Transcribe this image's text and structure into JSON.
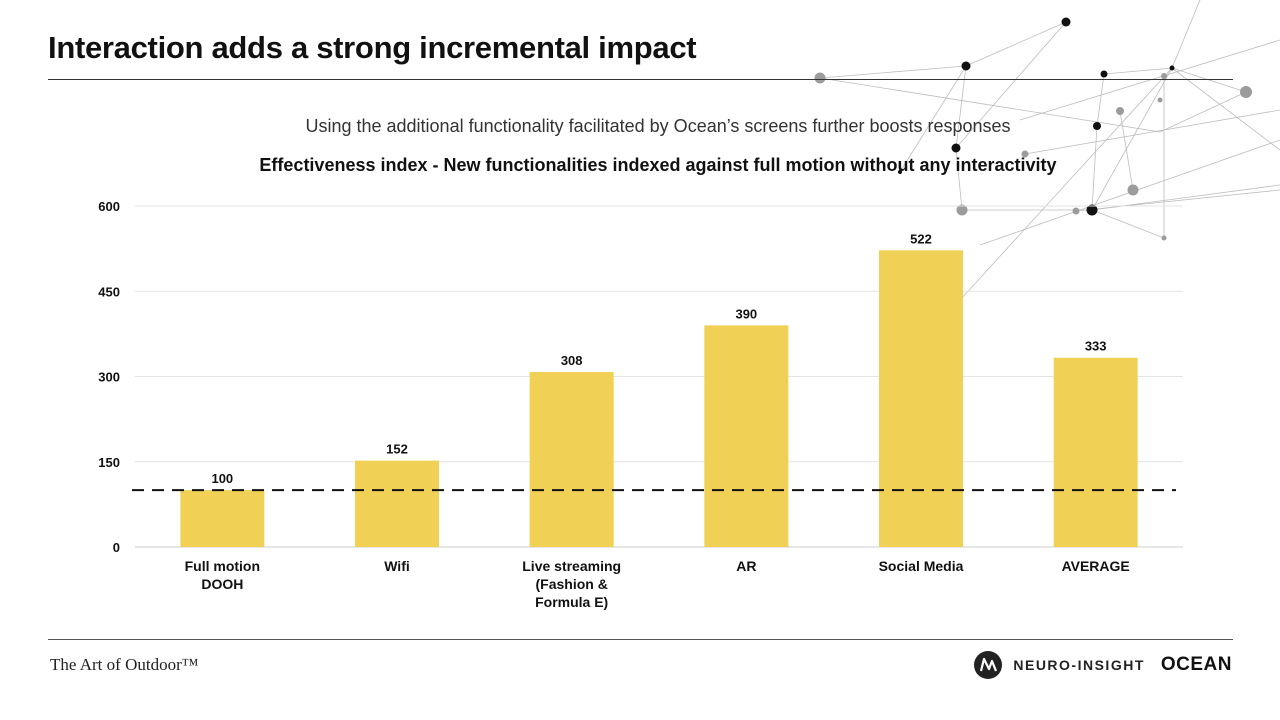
{
  "title": "Interaction adds a strong incremental impact",
  "subtitle": "Using the additional functionality facilitated by Ocean’s screens further boosts responses",
  "footer": {
    "brand": "The Art of Outdoor™",
    "logo_neuro": "NEURO-INSIGHT",
    "logo_ocean": "OCEAN"
  },
  "colors": {
    "bar": "#f0d155",
    "grid": "#e3e3e3",
    "baseline_dash": "#111111"
  },
  "chart_data": {
    "type": "bar",
    "title": "Effectiveness index - New functionalities indexed against full motion without any interactivity",
    "categories": [
      [
        "Full motion",
        "DOOH"
      ],
      [
        "Wifi"
      ],
      [
        "Live streaming",
        "(Fashion &",
        "Formula E)"
      ],
      [
        "AR"
      ],
      [
        "Social Media"
      ],
      [
        "AVERAGE"
      ]
    ],
    "values": [
      100,
      152,
      308,
      390,
      522,
      333
    ],
    "yticks": [
      0,
      150,
      300,
      450,
      600
    ],
    "ylim": [
      0,
      600
    ],
    "reference_line": 100,
    "grid": true,
    "legend": false,
    "xlabel": "",
    "ylabel": ""
  }
}
